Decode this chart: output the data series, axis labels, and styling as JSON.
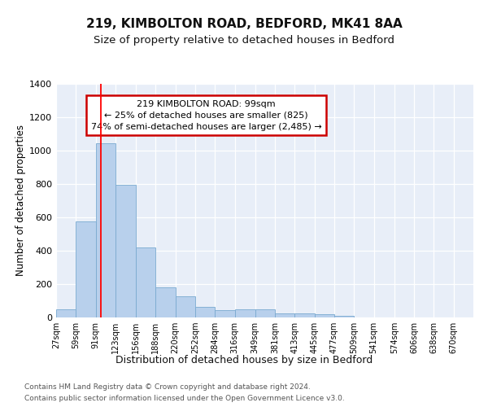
{
  "title1": "219, KIMBOLTON ROAD, BEDFORD, MK41 8AA",
  "title2": "Size of property relative to detached houses in Bedford",
  "xlabel": "Distribution of detached houses by size in Bedford",
  "ylabel": "Number of detached properties",
  "bins": [
    27,
    59,
    91,
    123,
    156,
    188,
    220,
    252,
    284,
    316,
    349,
    381,
    413,
    445,
    477,
    509,
    541,
    574,
    606,
    638,
    670
  ],
  "counts": [
    50,
    575,
    1042,
    795,
    420,
    178,
    125,
    63,
    45,
    48,
    48,
    25,
    25,
    18,
    12,
    0,
    0,
    0,
    0,
    0,
    0
  ],
  "bar_color": "#b8d0ec",
  "bar_edge_color": "#7aaad0",
  "red_line_x": 99,
  "ylim": [
    0,
    1400
  ],
  "yticks": [
    0,
    200,
    400,
    600,
    800,
    1000,
    1200,
    1400
  ],
  "annotation_text": "219 KIMBOLTON ROAD: 99sqm\n← 25% of detached houses are smaller (825)\n74% of semi-detached houses are larger (2,485) →",
  "annotation_box_facecolor": "#ffffff",
  "annotation_box_edgecolor": "#cc0000",
  "fig_bg_color": "#ffffff",
  "plot_bg_color": "#e8eef8",
  "grid_color": "#ffffff",
  "footnote1": "Contains HM Land Registry data © Crown copyright and database right 2024.",
  "footnote2": "Contains public sector information licensed under the Open Government Licence v3.0.",
  "title1_fontsize": 11,
  "title2_fontsize": 9.5,
  "ylabel_fontsize": 8.5,
  "xlabel_fontsize": 9,
  "annotation_fontsize": 8,
  "footnote_fontsize": 6.5,
  "ytick_fontsize": 8,
  "xtick_fontsize": 7
}
